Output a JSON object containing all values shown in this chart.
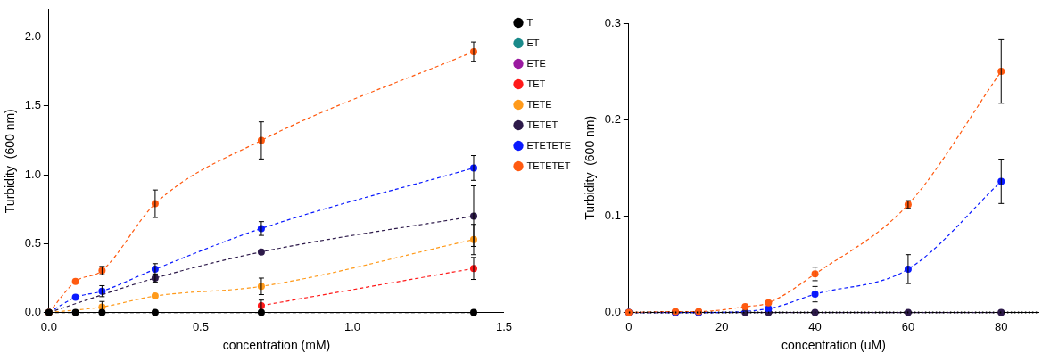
{
  "chart_data": [
    {
      "type": "line",
      "xlabel": "concentration (mM)",
      "ylabel": "Turbidity  (600 nm)",
      "x": [
        0,
        0.0875,
        0.175,
        0.35,
        0.7,
        1.4
      ],
      "xlim": [
        0,
        1.5
      ],
      "ylim": [
        0,
        2.2
      ],
      "xticks": [
        {
          "value": 0,
          "label": "0.0"
        },
        {
          "value": 0.5,
          "label": "0.5"
        },
        {
          "value": 1,
          "label": "1.0"
        },
        {
          "value": 1.5,
          "label": "1.5"
        }
      ],
      "yticks": [
        {
          "value": 0,
          "label": "0.0"
        },
        {
          "value": 0.5,
          "label": "0.5"
        },
        {
          "value": 1,
          "label": "1.0"
        },
        {
          "value": 1.5,
          "label": "1.5"
        },
        {
          "value": 2,
          "label": "2.0"
        }
      ],
      "legend": "right",
      "marker": "circle",
      "line_style": "dashed",
      "series": [
        {
          "name": "T",
          "color": "#000000",
          "values": [
            0,
            0,
            0,
            0,
            0,
            0
          ]
        },
        {
          "name": "ET",
          "color": "#1a8a8a",
          "values": [
            null,
            null,
            null,
            null,
            null,
            null
          ]
        },
        {
          "name": "ETE",
          "color": "#9a1aa0",
          "values": [
            null,
            null,
            null,
            null,
            null,
            null
          ]
        },
        {
          "name": "TET",
          "color": "#ff1a1a",
          "values": [
            null,
            null,
            null,
            null,
            0.05,
            0.32
          ],
          "errors": [
            null,
            null,
            null,
            null,
            0.04,
            0.08
          ]
        },
        {
          "name": "TETE",
          "color": "#ff9a1a",
          "values": [
            0,
            null,
            0.04,
            0.12,
            0.19,
            0.53
          ],
          "errors": [
            null,
            null,
            0.04,
            null,
            0.06,
            0.11
          ]
        },
        {
          "name": "TETET",
          "color": "#2d1a4a",
          "values": [
            0,
            null,
            null,
            0.25,
            0.44,
            0.7
          ],
          "errors": [
            null,
            null,
            null,
            0.03,
            null,
            0.22
          ]
        },
        {
          "name": "ETETETE",
          "color": "#0a1aff",
          "values": [
            0,
            0.11,
            0.155,
            0.315,
            0.61,
            1.05
          ],
          "errors": [
            null,
            null,
            0.04,
            0.04,
            0.05,
            0.09
          ]
        },
        {
          "name": "TETETET",
          "color": "#ff5a10",
          "values": [
            0,
            0.225,
            0.305,
            0.79,
            1.25,
            1.895
          ],
          "errors": [
            null,
            null,
            0.03,
            0.1,
            0.135,
            0.07
          ]
        }
      ]
    },
    {
      "type": "line",
      "xlabel": "concentration (uM)",
      "ylabel": "Turbidity  (600 nm)",
      "x": [
        0,
        10,
        15,
        25,
        30,
        40,
        60,
        80
      ],
      "xlim": [
        0,
        88
      ],
      "ylim": [
        0,
        0.3
      ],
      "xticks": [
        0,
        20,
        40,
        60,
        80
      ],
      "yticks": [
        {
          "value": 0,
          "label": "0.0"
        },
        0.1,
        0.2,
        0.3
      ],
      "marker": "circle",
      "line_style": "dashed",
      "ref_lines": [
        {
          "axis": "y",
          "value": 0,
          "color": "#000000",
          "line_style": "dotted"
        }
      ],
      "series": [
        {
          "color": "#ff5a10",
          "values": [
            0,
            0.001,
            0.001,
            0.006,
            0.01,
            0.04,
            0.112,
            0.25
          ],
          "errors": [
            null,
            null,
            null,
            null,
            null,
            0.007,
            0.004,
            0.033
          ]
        },
        {
          "color": "#0a1aff",
          "values": [
            0,
            0,
            0,
            null,
            0.004,
            0.019,
            0.045,
            0.136
          ],
          "errors": [
            null,
            null,
            null,
            null,
            null,
            0.008,
            0.015,
            0.023
          ]
        },
        {
          "color": "#2d1a4a",
          "values": [
            0,
            0,
            0,
            0,
            0,
            0,
            0,
            0
          ]
        }
      ]
    }
  ]
}
